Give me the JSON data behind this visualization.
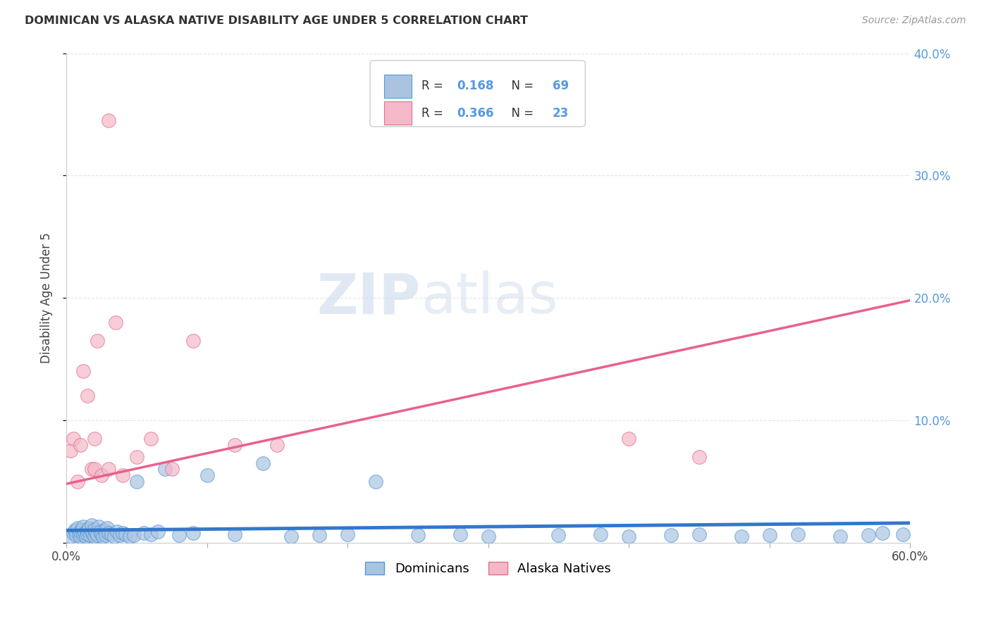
{
  "title": "DOMINICAN VS ALASKA NATIVE DISABILITY AGE UNDER 5 CORRELATION CHART",
  "source": "Source: ZipAtlas.com",
  "ylabel": "Disability Age Under 5",
  "xlim": [
    0.0,
    0.6
  ],
  "ylim": [
    0.0,
    0.4
  ],
  "xticks": [
    0.0,
    0.1,
    0.2,
    0.3,
    0.4,
    0.5,
    0.6
  ],
  "xticklabels": [
    "0.0%",
    "",
    "",
    "",
    "",
    "",
    "60.0%"
  ],
  "yticks": [
    0.0,
    0.1,
    0.2,
    0.3,
    0.4
  ],
  "yticklabels_right": [
    "",
    "10.0%",
    "20.0%",
    "30.0%",
    "40.0%"
  ],
  "dominicans_color": "#aac4e0",
  "dominicans_edge": "#5599dd",
  "alaska_color": "#f5b8c8",
  "alaska_edge": "#e07090",
  "trend_dom_color": "#3377cc",
  "trend_ak_color": "#e86090",
  "R_dom": 0.168,
  "N_dom": 69,
  "R_ak": 0.366,
  "N_ak": 23,
  "watermark": "ZIPatlas",
  "bg_color": "#ffffff",
  "grid_color": "#dddddd",
  "tick_color": "#5599dd",
  "dominicans_x": [
    0.003,
    0.005,
    0.006,
    0.007,
    0.008,
    0.009,
    0.01,
    0.01,
    0.011,
    0.012,
    0.012,
    0.013,
    0.014,
    0.015,
    0.015,
    0.016,
    0.017,
    0.018,
    0.018,
    0.019,
    0.02,
    0.02,
    0.021,
    0.022,
    0.023,
    0.024,
    0.025,
    0.026,
    0.027,
    0.028,
    0.029,
    0.03,
    0.032,
    0.034,
    0.036,
    0.038,
    0.04,
    0.042,
    0.045,
    0.048,
    0.05,
    0.055,
    0.06,
    0.065,
    0.07,
    0.08,
    0.09,
    0.1,
    0.12,
    0.14,
    0.16,
    0.18,
    0.2,
    0.22,
    0.25,
    0.28,
    0.3,
    0.35,
    0.38,
    0.4,
    0.43,
    0.45,
    0.48,
    0.5,
    0.52,
    0.55,
    0.57,
    0.58,
    0.595
  ],
  "dominicans_y": [
    0.005,
    0.008,
    0.01,
    0.006,
    0.012,
    0.007,
    0.005,
    0.009,
    0.011,
    0.006,
    0.013,
    0.008,
    0.005,
    0.007,
    0.01,
    0.012,
    0.006,
    0.009,
    0.014,
    0.007,
    0.005,
    0.011,
    0.008,
    0.006,
    0.013,
    0.009,
    0.007,
    0.005,
    0.01,
    0.006,
    0.012,
    0.008,
    0.007,
    0.005,
    0.009,
    0.006,
    0.008,
    0.007,
    0.005,
    0.006,
    0.05,
    0.008,
    0.007,
    0.009,
    0.06,
    0.006,
    0.008,
    0.055,
    0.007,
    0.065,
    0.005,
    0.006,
    0.007,
    0.05,
    0.006,
    0.007,
    0.005,
    0.006,
    0.007,
    0.005,
    0.006,
    0.007,
    0.005,
    0.006,
    0.007,
    0.005,
    0.006,
    0.008,
    0.007
  ],
  "alaska_x": [
    0.003,
    0.005,
    0.008,
    0.01,
    0.012,
    0.015,
    0.018,
    0.02,
    0.022,
    0.025,
    0.03,
    0.035,
    0.04,
    0.05,
    0.06,
    0.075,
    0.09,
    0.12,
    0.15,
    0.4,
    0.45,
    0.03,
    0.02
  ],
  "alaska_y": [
    0.075,
    0.085,
    0.05,
    0.08,
    0.14,
    0.12,
    0.06,
    0.06,
    0.165,
    0.055,
    0.06,
    0.18,
    0.055,
    0.07,
    0.085,
    0.06,
    0.165,
    0.08,
    0.08,
    0.085,
    0.07,
    0.345,
    0.085
  ],
  "ak_trend_x0": 0.0,
  "ak_trend_y0": 0.048,
  "ak_trend_x1": 0.6,
  "ak_trend_y1": 0.198,
  "dom_trend_x0": 0.0,
  "dom_trend_y0": 0.01,
  "dom_trend_x1": 0.6,
  "dom_trend_y1": 0.016
}
